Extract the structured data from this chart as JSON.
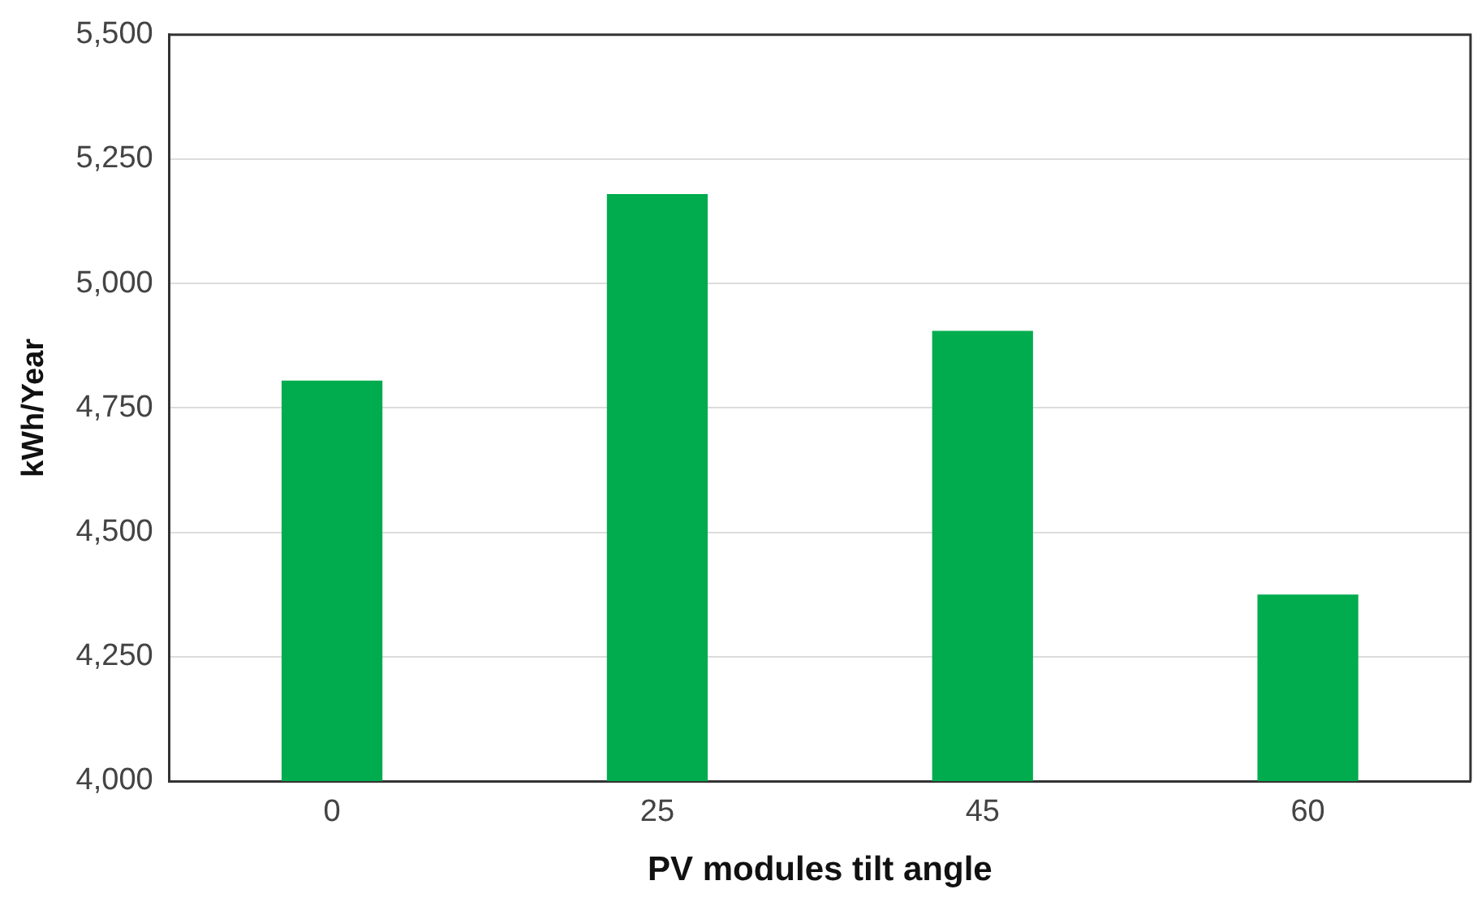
{
  "chart_data": {
    "type": "bar",
    "xlabel": "PV modules tilt angle",
    "ylabel": "kWh/Year",
    "categories": [
      "0",
      "25",
      "45",
      "60"
    ],
    "values": [
      4805,
      5180,
      4905,
      4375
    ],
    "color": "#00ac4e",
    "ylim": [
      4000,
      5500
    ],
    "yticks": [
      {
        "value": 4000,
        "label": "4,000"
      },
      {
        "value": 4250,
        "label": "4,250"
      },
      {
        "value": 4500,
        "label": "4,500"
      },
      {
        "value": 4750,
        "label": "4,750"
      },
      {
        "value": 5000,
        "label": "5,000"
      },
      {
        "value": 5250,
        "label": "5,250"
      },
      {
        "value": 5500,
        "label": "5,500"
      }
    ],
    "grid": "y",
    "legend": false
  }
}
